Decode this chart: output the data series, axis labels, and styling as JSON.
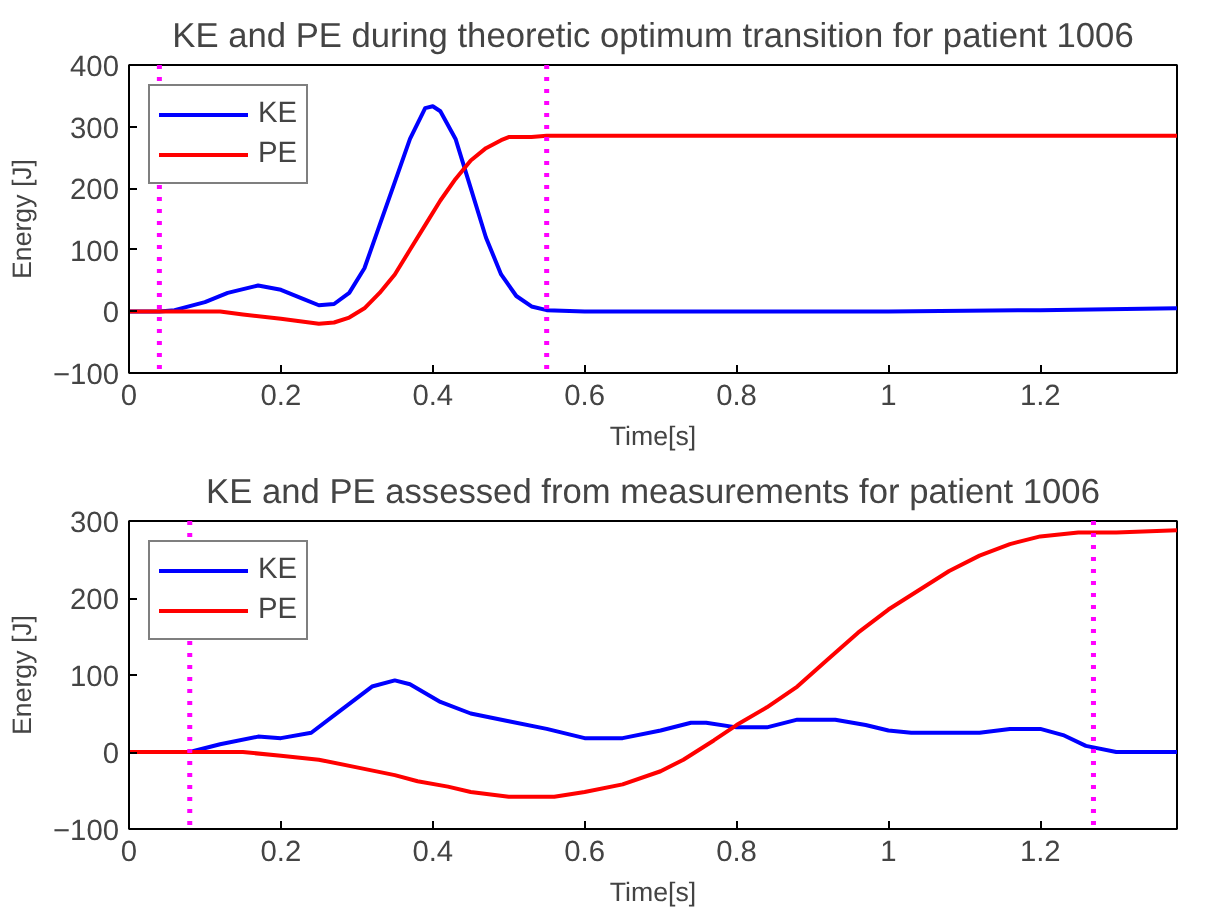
{
  "chart_data": [
    {
      "type": "line",
      "title": "KE and PE during theoretic optimum transition for patient 1006",
      "xlabel": "Time[s]",
      "ylabel": "Energy [J]",
      "xlim": [
        0,
        1.38
      ],
      "ylim": [
        -100,
        400
      ],
      "xticks": [
        0,
        0.2,
        0.4,
        0.6,
        0.8,
        1,
        1.2
      ],
      "yticks": [
        -100,
        0,
        100,
        200,
        300,
        400
      ],
      "legend": "top left",
      "grid": false,
      "line_style": "solid",
      "series": [
        {
          "name": "KE",
          "color": "#0000ff",
          "x": [
            0,
            0.04,
            0.06,
            0.1,
            0.13,
            0.17,
            0.2,
            0.23,
            0.25,
            0.27,
            0.29,
            0.31,
            0.33,
            0.35,
            0.37,
            0.39,
            0.4,
            0.41,
            0.43,
            0.45,
            0.47,
            0.49,
            0.51,
            0.53,
            0.55,
            0.6,
            1.0,
            1.2,
            1.38
          ],
          "values": [
            0,
            0,
            2,
            15,
            30,
            42,
            35,
            20,
            10,
            12,
            30,
            70,
            140,
            210,
            280,
            330,
            333,
            325,
            280,
            200,
            120,
            60,
            25,
            8,
            2,
            0,
            0,
            2,
            5
          ]
        },
        {
          "name": "PE",
          "color": "#ff0000",
          "x": [
            0,
            0.12,
            0.15,
            0.2,
            0.25,
            0.27,
            0.29,
            0.31,
            0.33,
            0.35,
            0.37,
            0.39,
            0.41,
            0.43,
            0.45,
            0.47,
            0.49,
            0.5,
            0.53,
            0.55,
            0.6,
            1.38
          ],
          "values": [
            0,
            0,
            -5,
            -12,
            -20,
            -18,
            -10,
            5,
            30,
            60,
            100,
            140,
            180,
            215,
            245,
            265,
            278,
            283,
            283,
            285,
            285,
            285
          ]
        }
      ],
      "ref_lines": [
        {
          "axis": "x",
          "value": 0.04,
          "color": "#ff00ff",
          "line_style": "dotted"
        },
        {
          "axis": "x",
          "value": 0.55,
          "color": "#ff00ff",
          "line_style": "dotted"
        }
      ]
    },
    {
      "type": "line",
      "title": "KE and PE assessed from measurements for patient 1006",
      "xlabel": "Time[s]",
      "ylabel": "Energy [J]",
      "xlim": [
        0,
        1.38
      ],
      "ylim": [
        -100,
        300
      ],
      "xticks": [
        0,
        0.2,
        0.4,
        0.6,
        0.8,
        1,
        1.2
      ],
      "yticks": [
        -100,
        0,
        100,
        200,
        300
      ],
      "legend": "top left",
      "grid": false,
      "line_style": "solid",
      "series": [
        {
          "name": "KE",
          "color": "#0000ff",
          "x": [
            0,
            0.08,
            0.12,
            0.17,
            0.2,
            0.24,
            0.28,
            0.32,
            0.35,
            0.37,
            0.41,
            0.45,
            0.5,
            0.55,
            0.6,
            0.65,
            0.7,
            0.74,
            0.76,
            0.8,
            0.84,
            0.88,
            0.93,
            0.97,
            1.0,
            1.03,
            1.12,
            1.16,
            1.2,
            1.23,
            1.26,
            1.3,
            1.38
          ],
          "values": [
            0,
            0,
            10,
            20,
            18,
            25,
            55,
            85,
            93,
            88,
            65,
            50,
            40,
            30,
            18,
            18,
            28,
            38,
            38,
            32,
            32,
            42,
            42,
            35,
            28,
            25,
            25,
            30,
            30,
            22,
            8,
            0,
            0
          ]
        },
        {
          "name": "PE",
          "color": "#ff0000",
          "x": [
            0,
            0.15,
            0.2,
            0.25,
            0.3,
            0.35,
            0.38,
            0.42,
            0.45,
            0.5,
            0.56,
            0.6,
            0.65,
            0.7,
            0.73,
            0.77,
            0.8,
            0.84,
            0.88,
            0.92,
            0.96,
            1.0,
            1.04,
            1.08,
            1.12,
            1.16,
            1.2,
            1.25,
            1.3,
            1.38
          ],
          "values": [
            0,
            0,
            -5,
            -10,
            -20,
            -30,
            -38,
            -45,
            -52,
            -58,
            -58,
            -52,
            -42,
            -25,
            -10,
            15,
            35,
            58,
            85,
            120,
            155,
            185,
            210,
            235,
            255,
            270,
            280,
            285,
            285,
            288
          ]
        }
      ],
      "ref_lines": [
        {
          "axis": "x",
          "value": 0.08,
          "color": "#ff00ff",
          "line_style": "dotted"
        },
        {
          "axis": "x",
          "value": 1.27,
          "color": "#ff00ff",
          "line_style": "dotted"
        }
      ]
    }
  ]
}
